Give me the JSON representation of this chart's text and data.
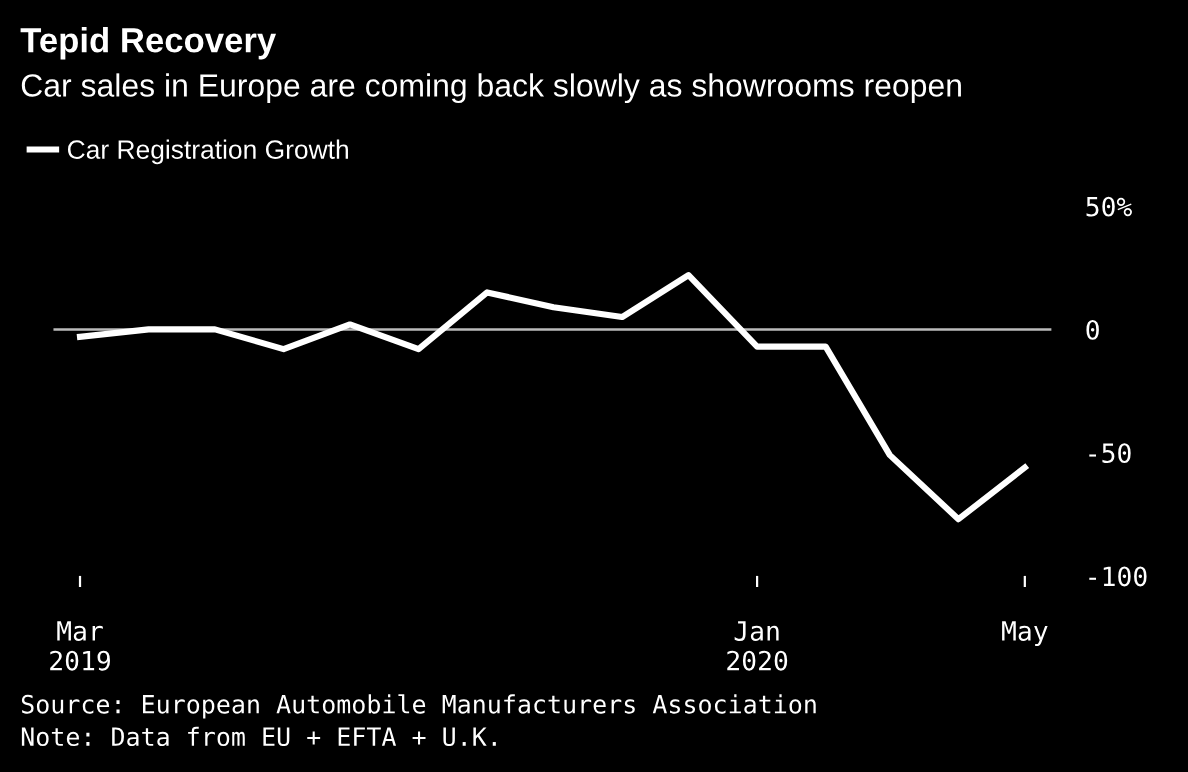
{
  "chart_data": {
    "type": "line",
    "title": "Tepid Recovery",
    "subtitle": "Car sales in Europe are coming back slowly as showrooms reopen",
    "x": [
      "2019-03",
      "2019-04",
      "2019-05",
      "2019-06",
      "2019-07",
      "2019-08",
      "2019-09",
      "2019-10",
      "2019-11",
      "2019-12",
      "2020-01",
      "2020-02",
      "2020-03",
      "2020-04",
      "2020-05"
    ],
    "series": [
      {
        "name": "Car Registration Growth",
        "color": "#ffffff",
        "values": [
          -3,
          0,
          0,
          -8,
          2,
          -8,
          15,
          9,
          5,
          22,
          -7,
          -7,
          -51,
          -77,
          -56
        ]
      }
    ],
    "xlim": [
      "2019-03",
      "2020-05"
    ],
    "xticks": [
      {
        "value": "2019-03",
        "label": "Mar\n2019"
      },
      {
        "value": "2020-01",
        "label": "Jan\n2020"
      },
      {
        "value": "2020-05",
        "label": "May"
      }
    ],
    "ylim": [
      -100,
      50
    ],
    "yticks": [
      {
        "value": 50,
        "label": "50%"
      },
      0,
      -50,
      -100
    ],
    "ref_lines": [
      {
        "axis": "y",
        "value": 0,
        "color": "#bbbbbb"
      }
    ],
    "legend": "top left",
    "grid": false,
    "annotations": [
      "Source: European Automobile Manufacturers Association",
      "Note: Data from EU + EFTA + U.K."
    ]
  }
}
